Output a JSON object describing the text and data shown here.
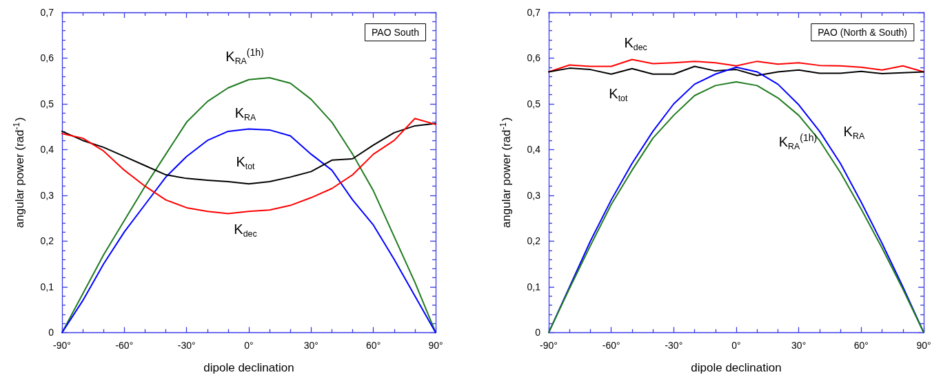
{
  "chart_data": [
    {
      "type": "line",
      "title": "PAO South",
      "xlabel": "dipole declination",
      "ylabel": "angular power (rad$^{-1}$)",
      "marker": "none",
      "xlim": [
        -90,
        90
      ],
      "ylim": [
        0,
        0.7
      ],
      "xticks": [
        {
          "value": -90,
          "label": "-90°"
        },
        {
          "value": -60,
          "label": "-60°"
        },
        {
          "value": -30,
          "label": "-30°"
        },
        {
          "value": 0,
          "label": "0°"
        },
        {
          "value": 30,
          "label": "30°"
        },
        {
          "value": 60,
          "label": "60°"
        },
        {
          "value": 90,
          "label": "90°"
        }
      ],
      "yticks": [
        0,
        {
          "value": 0.1,
          "label": "0,1"
        },
        {
          "value": 0.2,
          "label": "0,2"
        },
        {
          "value": 0.3,
          "label": "0,3"
        },
        {
          "value": 0.4,
          "label": "0,4"
        },
        {
          "value": 0.5,
          "label": "0,5"
        },
        {
          "value": 0.6,
          "label": "0,6"
        },
        {
          "value": 0.7,
          "label": "0,7"
        }
      ],
      "x": [
        -90,
        -80,
        -70,
        -60,
        -50,
        -40,
        -30,
        -20,
        -10,
        0,
        10,
        20,
        30,
        40,
        50,
        60,
        70,
        80,
        90
      ],
      "series": [
        {
          "name": "K$_{RA}$$^{(1h)}$",
          "color": "#1e7a1e",
          "values": [
            0,
            0.085,
            0.17,
            0.245,
            0.32,
            0.39,
            0.46,
            0.505,
            0.535,
            0.553,
            0.557,
            0.545,
            0.51,
            0.46,
            0.39,
            0.31,
            0.21,
            0.11,
            0
          ]
        },
        {
          "name": "K$_{RA}$",
          "color": "#0000ff",
          "values": [
            0,
            0.07,
            0.15,
            0.22,
            0.28,
            0.34,
            0.385,
            0.42,
            0.44,
            0.445,
            0.443,
            0.43,
            0.39,
            0.355,
            0.29,
            0.235,
            0.16,
            0.08,
            0
          ]
        },
        {
          "name": "K$_{tot}$",
          "color": "#000000",
          "values": [
            0.44,
            0.42,
            0.405,
            0.385,
            0.365,
            0.345,
            0.337,
            0.333,
            0.33,
            0.325,
            0.33,
            0.34,
            0.352,
            0.377,
            0.38,
            0.41,
            0.437,
            0.452,
            0.457
          ]
        },
        {
          "name": "K$_{dec}$",
          "color": "#ff0000",
          "values": [
            0.435,
            0.425,
            0.397,
            0.355,
            0.32,
            0.29,
            0.273,
            0.265,
            0.26,
            0.265,
            0.268,
            0.278,
            0.295,
            0.315,
            0.345,
            0.39,
            0.42,
            0.468,
            0.455
          ]
        }
      ]
    },
    {
      "type": "line",
      "title": "PAO (North & South)",
      "xlabel": "dipole declination",
      "ylabel": "angular power (rad$^{-1}$)",
      "marker": "none",
      "xlim": [
        -90,
        90
      ],
      "ylim": [
        0,
        0.7
      ],
      "xticks": [
        {
          "value": -90,
          "label": "-90°"
        },
        {
          "value": -60,
          "label": "-60°"
        },
        {
          "value": -30,
          "label": "-30°"
        },
        {
          "value": 0,
          "label": "0°"
        },
        {
          "value": 30,
          "label": "30°"
        },
        {
          "value": 60,
          "label": "60°"
        },
        {
          "value": 90,
          "label": "90°"
        }
      ],
      "yticks": [
        0,
        {
          "value": 0.1,
          "label": "0,1"
        },
        {
          "value": 0.2,
          "label": "0,2"
        },
        {
          "value": 0.3,
          "label": "0,3"
        },
        {
          "value": 0.4,
          "label": "0,4"
        },
        {
          "value": 0.5,
          "label": "0,5"
        },
        {
          "value": 0.6,
          "label": "0,6"
        },
        {
          "value": 0.7,
          "label": "0,7"
        }
      ],
      "x": [
        -90,
        -80,
        -70,
        -60,
        -50,
        -40,
        -30,
        -20,
        -10,
        0,
        10,
        20,
        30,
        40,
        50,
        60,
        70,
        80,
        90
      ],
      "series": [
        {
          "name": "K$_{dec}$",
          "color": "#ff0000",
          "values": [
            0.57,
            0.585,
            0.582,
            0.582,
            0.597,
            0.588,
            0.59,
            0.593,
            0.59,
            0.583,
            0.593,
            0.587,
            0.59,
            0.584,
            0.583,
            0.58,
            0.574,
            0.583,
            0.57
          ]
        },
        {
          "name": "K$_{tot}$",
          "color": "#000000",
          "values": [
            0.57,
            0.578,
            0.575,
            0.565,
            0.577,
            0.565,
            0.565,
            0.582,
            0.572,
            0.575,
            0.562,
            0.57,
            0.574,
            0.567,
            0.567,
            0.571,
            0.566,
            0.568,
            0.57
          ]
        },
        {
          "name": "K$_{RA}$",
          "color": "#0000ff",
          "values": [
            0,
            0.1,
            0.2,
            0.29,
            0.37,
            0.44,
            0.5,
            0.543,
            0.565,
            0.58,
            0.57,
            0.543,
            0.498,
            0.44,
            0.37,
            0.285,
            0.195,
            0.1,
            0
          ]
        },
        {
          "name": "K$_{RA}$$^{(1h)}$",
          "color": "#1e7a1e",
          "values": [
            0,
            0.097,
            0.19,
            0.28,
            0.355,
            0.425,
            0.475,
            0.518,
            0.54,
            0.548,
            0.54,
            0.513,
            0.475,
            0.42,
            0.35,
            0.27,
            0.185,
            0.095,
            0
          ]
        }
      ]
    }
  ]
}
